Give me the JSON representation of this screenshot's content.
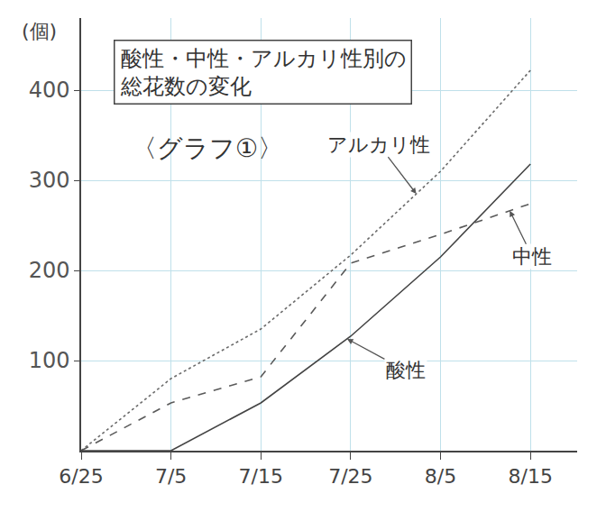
{
  "chart_data": {
    "type": "line",
    "title": "酸性・中性・アルカリ性別の総花数の変化",
    "subtitle": "〈グラフ①〉",
    "y_label": "(個)",
    "categories": [
      "6/25",
      "7/5",
      "7/15",
      "7/25",
      "8/5",
      "8/15"
    ],
    "series": [
      {
        "name": "アルカリ性",
        "color": "#6b6b6b",
        "line_style": "dotted",
        "values": [
          0,
          80,
          135,
          217,
          310,
          422
        ]
      },
      {
        "name": "中性",
        "color": "#5a5a5a",
        "line_style": "dashed",
        "values": [
          0,
          53,
          82,
          208,
          240,
          274
        ]
      },
      {
        "name": "酸性",
        "color": "#444444",
        "line_style": "solid",
        "values": [
          0,
          0,
          53,
          127,
          215,
          318
        ]
      }
    ],
    "ylim": [
      0,
      480
    ],
    "yticks": [
      100,
      200,
      300,
      400
    ],
    "grid": true
  }
}
